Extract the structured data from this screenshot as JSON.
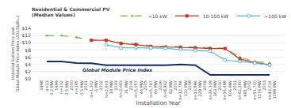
{
  "chart_data": {
    "type": "line",
    "title": "Residential & Commercial PV\n(Median Values)",
    "xlabel": "Installation Year",
    "ylabel": "Installed System Price and\nGlobal Module Price Index (2013$/Wₐₑ)",
    "categories": [
      "1998\nn=23\n0.2 MW",
      "1999\nn=102\n0.5 MW",
      "2000\nn=185\n0.5 MW",
      "2001\nn=1,302\n6 MW",
      "2002\nn=2,641\n18 MW",
      "2003\nn=3,493\n31 MW",
      "2004\nn=5,057\n44 MW",
      "2005\nn=5,797\n64 MW",
      "2006\nn=8,942\n92 MW",
      "2007\nn=12,784\n132 MW",
      "2008\nn=13,886\n228 MW",
      "2009\nn=24,319\n363 MW",
      "2010\nn=36,488\n506 MW",
      "2011\nn=42,360\n681 MW",
      "2012\nn=51,710\n1174 MW",
      "2013\nn=93,014\n1098 MW"
    ],
    "series": [
      {
        "name": "<10 kW",
        "color": "#7cb442",
        "marker": "triangle",
        "line_style": "dashed",
        "values": [
          12.0,
          12.0,
          11.5,
          10.8,
          10.8,
          10.0,
          9.7,
          9.2,
          9.0,
          9.0,
          8.8,
          8.6,
          8.5,
          6.0,
          4.8,
          4.4
        ]
      },
      {
        "name": "10-100 kW",
        "color": "#c0392b",
        "marker": "square",
        "line_style": "solid",
        "values": [
          null,
          null,
          null,
          10.7,
          10.7,
          9.8,
          9.5,
          9.0,
          8.8,
          8.7,
          8.6,
          8.4,
          8.4,
          5.5,
          4.5,
          3.9
        ]
      },
      {
        "name": ">100 kW",
        "color": "#5bb8d4",
        "marker": "open circle",
        "line_style": "solid",
        "values": [
          null,
          null,
          null,
          null,
          9.5,
          8.6,
          8.6,
          8.6,
          8.5,
          8.1,
          7.9,
          7.7,
          5.2,
          4.8,
          4.4,
          3.8
        ]
      },
      {
        "color": "#1a2e5a",
        "line_style": "solid",
        "values": [
          4.8,
          4.8,
          4.4,
          4.3,
          3.8,
          3.8,
          3.8,
          3.8,
          3.8,
          4.0,
          3.8,
          1.1,
          1.1,
          1.1,
          1.1,
          1.1
        ]
      }
    ],
    "annotations": [
      {
        "text": "Global Module Price Index",
        "color": "#1a2e5a"
      }
    ],
    "ylim": [
      0,
      14
    ],
    "yticks": [
      {
        "value": 0,
        "label": "$0"
      },
      {
        "value": 2,
        "label": "$2"
      },
      {
        "value": 4,
        "label": "$4"
      },
      {
        "value": 6,
        "label": "$6"
      },
      {
        "value": 8,
        "label": "$8"
      },
      {
        "value": 10,
        "label": "$10"
      },
      {
        "value": 12,
        "label": "$12"
      },
      {
        "value": 14,
        "label": "$14"
      }
    ],
    "grid": "y",
    "legend": "top"
  }
}
